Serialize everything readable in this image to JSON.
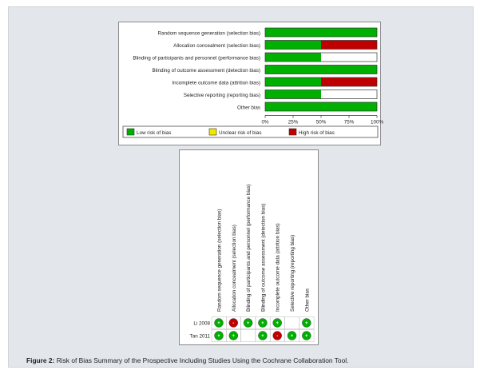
{
  "caption": {
    "label": "Figure 2:",
    "text": " Risk of Bias Summary of the Prospective Including Studies Using the Cochrane Collaboration Tool."
  },
  "chart_data": [
    {
      "type": "bar",
      "orientation": "horizontal",
      "stacked": true,
      "categories": [
        "Random sequence generation (selection bias)",
        "Allocation concealment (selection bias)",
        "Blinding of participants and personnel (performance bias)",
        "Blinding of outcome assessment (detection bias)",
        "Incomplete outcome data (attrition bias)",
        "Selective reporting (reporting bias)",
        "Other bias"
      ],
      "series": [
        {
          "name": "Low risk of bias",
          "color": "#00b000",
          "values": [
            100,
            50,
            50,
            100,
            50,
            50,
            100
          ]
        },
        {
          "name": "Unclear risk of bias",
          "color": "#ffffff",
          "values": [
            0,
            0,
            50,
            0,
            0,
            50,
            0
          ]
        },
        {
          "name": "High risk of bias",
          "color": "#c00000",
          "values": [
            0,
            50,
            0,
            0,
            50,
            0,
            0
          ]
        }
      ],
      "xticks": [
        "0%",
        "25%",
        "50%",
        "75%",
        "100%"
      ],
      "xlim": [
        0,
        100
      ],
      "legend": [
        {
          "label": "Low risk of bias",
          "color": "#00b000"
        },
        {
          "label": "Unclear risk of bias",
          "color": "#f5e600"
        },
        {
          "label": "High risk of bias",
          "color": "#c00000"
        }
      ],
      "legend_position": "bottom"
    },
    {
      "type": "table",
      "columns": [
        "Random sequence generation (selection bias)",
        "Allocation concealment (selection bias)",
        "Blinding of participants and personnel (performance bias)",
        "Blinding of outcome assessment (detection bias)",
        "Incomplete outcome data (attrition bias)",
        "Selective reporting (reporting bias)",
        "Other bias"
      ],
      "rows": [
        {
          "study": "Li 2008",
          "ratings": [
            "low",
            "high",
            "low",
            "low",
            "low",
            "",
            "low"
          ]
        },
        {
          "study": "Tan 2011",
          "ratings": [
            "low",
            "low",
            "",
            "low",
            "high",
            "low",
            "low"
          ]
        }
      ],
      "symbols": {
        "low": "+",
        "high": "-"
      },
      "colors": {
        "low": "#00b000",
        "high": "#c00000"
      }
    }
  ]
}
